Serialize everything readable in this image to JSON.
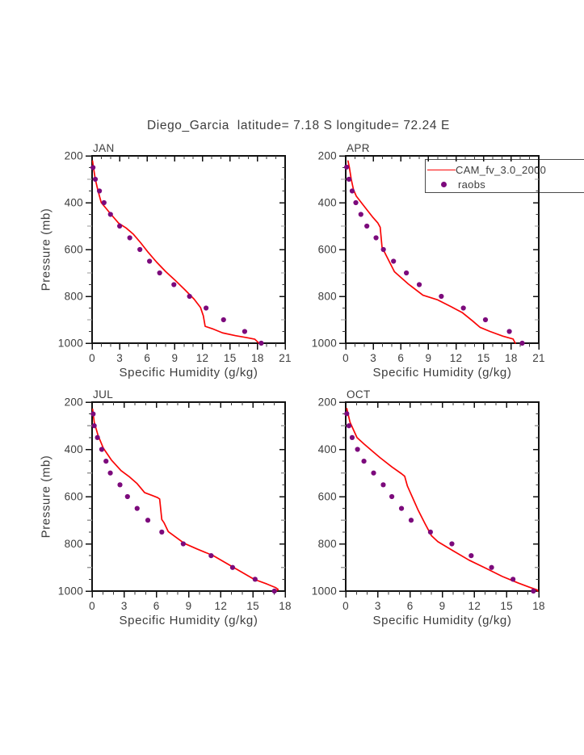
{
  "page": {
    "title": "Diego_Garcia  latitude= 7.18 S longitude= 72.24 E"
  },
  "labels": {
    "xlabel": "Specific Humidity (g/kg)",
    "ylabel": "Pressure (mb)"
  },
  "legend": {
    "entries": [
      {
        "label": "CAM_fv_3.0_2000",
        "marker": "line",
        "color": "#fa0505"
      },
      {
        "label": "raobs",
        "marker": "dot",
        "color": "#7c0a7c"
      }
    ]
  },
  "colors": {
    "cam_line": "#fa0505",
    "raobs_dot": "#7c0a7c",
    "axis": "#111111",
    "minor_tick": "#3a3a3a",
    "mid_tick": "#999999",
    "text": "#3d3d3d"
  },
  "chart_data": [
    {
      "type": "line",
      "panel": "JAN",
      "xlabel": "Specific Humidity (g/kg)",
      "ylabel": "Pressure (mb)",
      "xlim": [
        0,
        21
      ],
      "xticks": [
        0,
        3,
        6,
        9,
        12,
        15,
        18,
        21
      ],
      "x_minor_step": 1,
      "ylim": [
        200,
        1000
      ],
      "yticks": [
        200,
        400,
        600,
        800,
        1000
      ],
      "y_minor_step": 50,
      "series": [
        {
          "name": "CAM_fv_3.0_2000",
          "type": "line",
          "color": "#fa0505",
          "points": [
            [
              0.05,
              222
            ],
            [
              0.15,
              250
            ],
            [
              0.35,
              300
            ],
            [
              0.65,
              350
            ],
            [
              1.0,
              400
            ],
            [
              1.6,
              428
            ],
            [
              2.0,
              447
            ],
            [
              2.9,
              488
            ],
            [
              3.7,
              508
            ],
            [
              4.5,
              535
            ],
            [
              5.3,
              572
            ],
            [
              6.1,
              612
            ],
            [
              7.0,
              653
            ],
            [
              8.0,
              694
            ],
            [
              9.0,
              730
            ],
            [
              10.1,
              772
            ],
            [
              11.1,
              812
            ],
            [
              11.8,
              848
            ],
            [
              12.1,
              883
            ],
            [
              12.3,
              928
            ],
            [
              13.2,
              940
            ],
            [
              14.2,
              956
            ],
            [
              15.6,
              968
            ],
            [
              16.8,
              976
            ],
            [
              17.7,
              983
            ],
            [
              18.15,
              1000
            ]
          ]
        },
        {
          "name": "raobs",
          "type": "scatter",
          "color": "#7c0a7c",
          "points": [
            [
              0.1,
              250
            ],
            [
              0.35,
              300
            ],
            [
              0.8,
              350
            ],
            [
              1.3,
              400
            ],
            [
              2.0,
              450
            ],
            [
              3.0,
              500
            ],
            [
              4.1,
              550
            ],
            [
              5.2,
              600
            ],
            [
              6.25,
              650
            ],
            [
              7.35,
              700
            ],
            [
              8.9,
              750
            ],
            [
              10.6,
              800
            ],
            [
              12.4,
              850
            ],
            [
              14.3,
              900
            ],
            [
              16.6,
              950
            ],
            [
              18.4,
              1000
            ]
          ]
        }
      ]
    },
    {
      "type": "line",
      "panel": "APR",
      "xlabel": "Specific Humidity (g/kg)",
      "ylabel": "Pressure (mb)",
      "xlim": [
        0,
        21
      ],
      "xticks": [
        0,
        3,
        6,
        9,
        12,
        15,
        18,
        21
      ],
      "x_minor_step": 1,
      "ylim": [
        200,
        1000
      ],
      "yticks": [
        200,
        400,
        600,
        800,
        1000
      ],
      "y_minor_step": 50,
      "series": [
        {
          "name": "CAM_fv_3.0_2000",
          "type": "line",
          "color": "#fa0505",
          "points": [
            [
              0.25,
              222
            ],
            [
              0.4,
              250
            ],
            [
              0.6,
              300
            ],
            [
              0.85,
              345
            ],
            [
              1.15,
              372
            ],
            [
              1.9,
              410
            ],
            [
              2.9,
              460
            ],
            [
              3.5,
              487
            ],
            [
              3.75,
              505
            ],
            [
              3.95,
              590
            ],
            [
              4.4,
              625
            ],
            [
              5.3,
              695
            ],
            [
              6.8,
              747
            ],
            [
              8.4,
              795
            ],
            [
              10.0,
              815
            ],
            [
              11.5,
              845
            ],
            [
              12.7,
              870
            ],
            [
              13.8,
              905
            ],
            [
              14.6,
              932
            ],
            [
              15.7,
              950
            ],
            [
              17.1,
              970
            ],
            [
              18.2,
              982
            ],
            [
              18.45,
              1000
            ]
          ]
        },
        {
          "name": "raobs",
          "type": "scatter",
          "color": "#7c0a7c",
          "points": [
            [
              0.1,
              248
            ],
            [
              0.35,
              300
            ],
            [
              0.7,
              350
            ],
            [
              1.1,
              400
            ],
            [
              1.65,
              450
            ],
            [
              2.3,
              500
            ],
            [
              3.3,
              550
            ],
            [
              4.1,
              600
            ],
            [
              5.2,
              650
            ],
            [
              6.6,
              700
            ],
            [
              8.0,
              750
            ],
            [
              10.4,
              800
            ],
            [
              12.8,
              850
            ],
            [
              15.2,
              900
            ],
            [
              17.8,
              950
            ],
            [
              19.2,
              1000
            ]
          ]
        }
      ]
    },
    {
      "type": "line",
      "panel": "JUL",
      "xlabel": "Specific Humidity (g/kg)",
      "ylabel": "Pressure (mb)",
      "xlim": [
        0,
        18
      ],
      "xticks": [
        0,
        3,
        6,
        9,
        12,
        15,
        18
      ],
      "x_minor_step": 1,
      "ylim": [
        200,
        1000
      ],
      "yticks": [
        200,
        400,
        600,
        800,
        1000
      ],
      "y_minor_step": 50,
      "series": [
        {
          "name": "CAM_fv_3.0_2000",
          "type": "line",
          "color": "#fa0505",
          "points": [
            [
              0.05,
              230
            ],
            [
              0.2,
              285
            ],
            [
              0.55,
              340
            ],
            [
              1.05,
              395
            ],
            [
              1.8,
              445
            ],
            [
              2.7,
              490
            ],
            [
              3.5,
              517
            ],
            [
              4.2,
              545
            ],
            [
              4.9,
              583
            ],
            [
              5.6,
              595
            ],
            [
              6.1,
              604
            ],
            [
              6.3,
              610
            ],
            [
              6.5,
              697
            ],
            [
              6.7,
              710
            ],
            [
              7.1,
              748
            ],
            [
              8.6,
              798
            ],
            [
              9.8,
              822
            ],
            [
              11.3,
              850
            ],
            [
              13.2,
              900
            ],
            [
              15.1,
              950
            ],
            [
              16.3,
              970
            ],
            [
              17.1,
              985
            ],
            [
              17.35,
              993
            ],
            [
              17.15,
              1000
            ]
          ]
        },
        {
          "name": "raobs",
          "type": "scatter",
          "color": "#7c0a7c",
          "points": [
            [
              0.1,
              250
            ],
            [
              0.2,
              300
            ],
            [
              0.5,
              350
            ],
            [
              0.9,
              400
            ],
            [
              1.3,
              450
            ],
            [
              1.7,
              500
            ],
            [
              2.6,
              550
            ],
            [
              3.3,
              600
            ],
            [
              4.2,
              650
            ],
            [
              5.2,
              700
            ],
            [
              6.5,
              750
            ],
            [
              8.5,
              800
            ],
            [
              11.1,
              850
            ],
            [
              13.1,
              900
            ],
            [
              15.2,
              950
            ],
            [
              17.0,
              1000
            ]
          ]
        }
      ]
    },
    {
      "type": "line",
      "panel": "OCT",
      "xlabel": "Specific Humidity (g/kg)",
      "ylabel": "Pressure (mb)",
      "xlim": [
        0,
        18
      ],
      "xticks": [
        0,
        3,
        6,
        9,
        12,
        15,
        18
      ],
      "x_minor_step": 1,
      "ylim": [
        200,
        1000
      ],
      "yticks": [
        200,
        400,
        600,
        800,
        1000
      ],
      "y_minor_step": 50,
      "series": [
        {
          "name": "CAM_fv_3.0_2000",
          "type": "line",
          "color": "#fa0505",
          "points": [
            [
              0.1,
              227
            ],
            [
              0.4,
              285
            ],
            [
              1.05,
              350
            ],
            [
              1.7,
              377
            ],
            [
              2.6,
              412
            ],
            [
              3.2,
              435
            ],
            [
              4.3,
              474
            ],
            [
              5.2,
              503
            ],
            [
              5.5,
              514
            ],
            [
              5.75,
              555
            ],
            [
              6.25,
              606
            ],
            [
              6.75,
              657
            ],
            [
              7.4,
              715
            ],
            [
              8.0,
              766
            ],
            [
              8.6,
              791
            ],
            [
              10.0,
              829
            ],
            [
              11.5,
              869
            ],
            [
              13.05,
              903
            ],
            [
              14.6,
              938
            ],
            [
              16.1,
              966
            ],
            [
              17.1,
              983
            ],
            [
              17.85,
              995
            ],
            [
              17.9,
              1000
            ]
          ]
        },
        {
          "name": "raobs",
          "type": "scatter",
          "color": "#7c0a7c",
          "points": [
            [
              0.1,
              249
            ],
            [
              0.3,
              300
            ],
            [
              0.6,
              350
            ],
            [
              1.1,
              400
            ],
            [
              1.7,
              450
            ],
            [
              2.6,
              500
            ],
            [
              3.5,
              550
            ],
            [
              4.3,
              600
            ],
            [
              5.2,
              650
            ],
            [
              6.1,
              700
            ],
            [
              7.9,
              750
            ],
            [
              9.9,
              800
            ],
            [
              11.7,
              850
            ],
            [
              13.6,
              900
            ],
            [
              15.6,
              950
            ],
            [
              17.5,
              1000
            ]
          ]
        }
      ]
    }
  ]
}
